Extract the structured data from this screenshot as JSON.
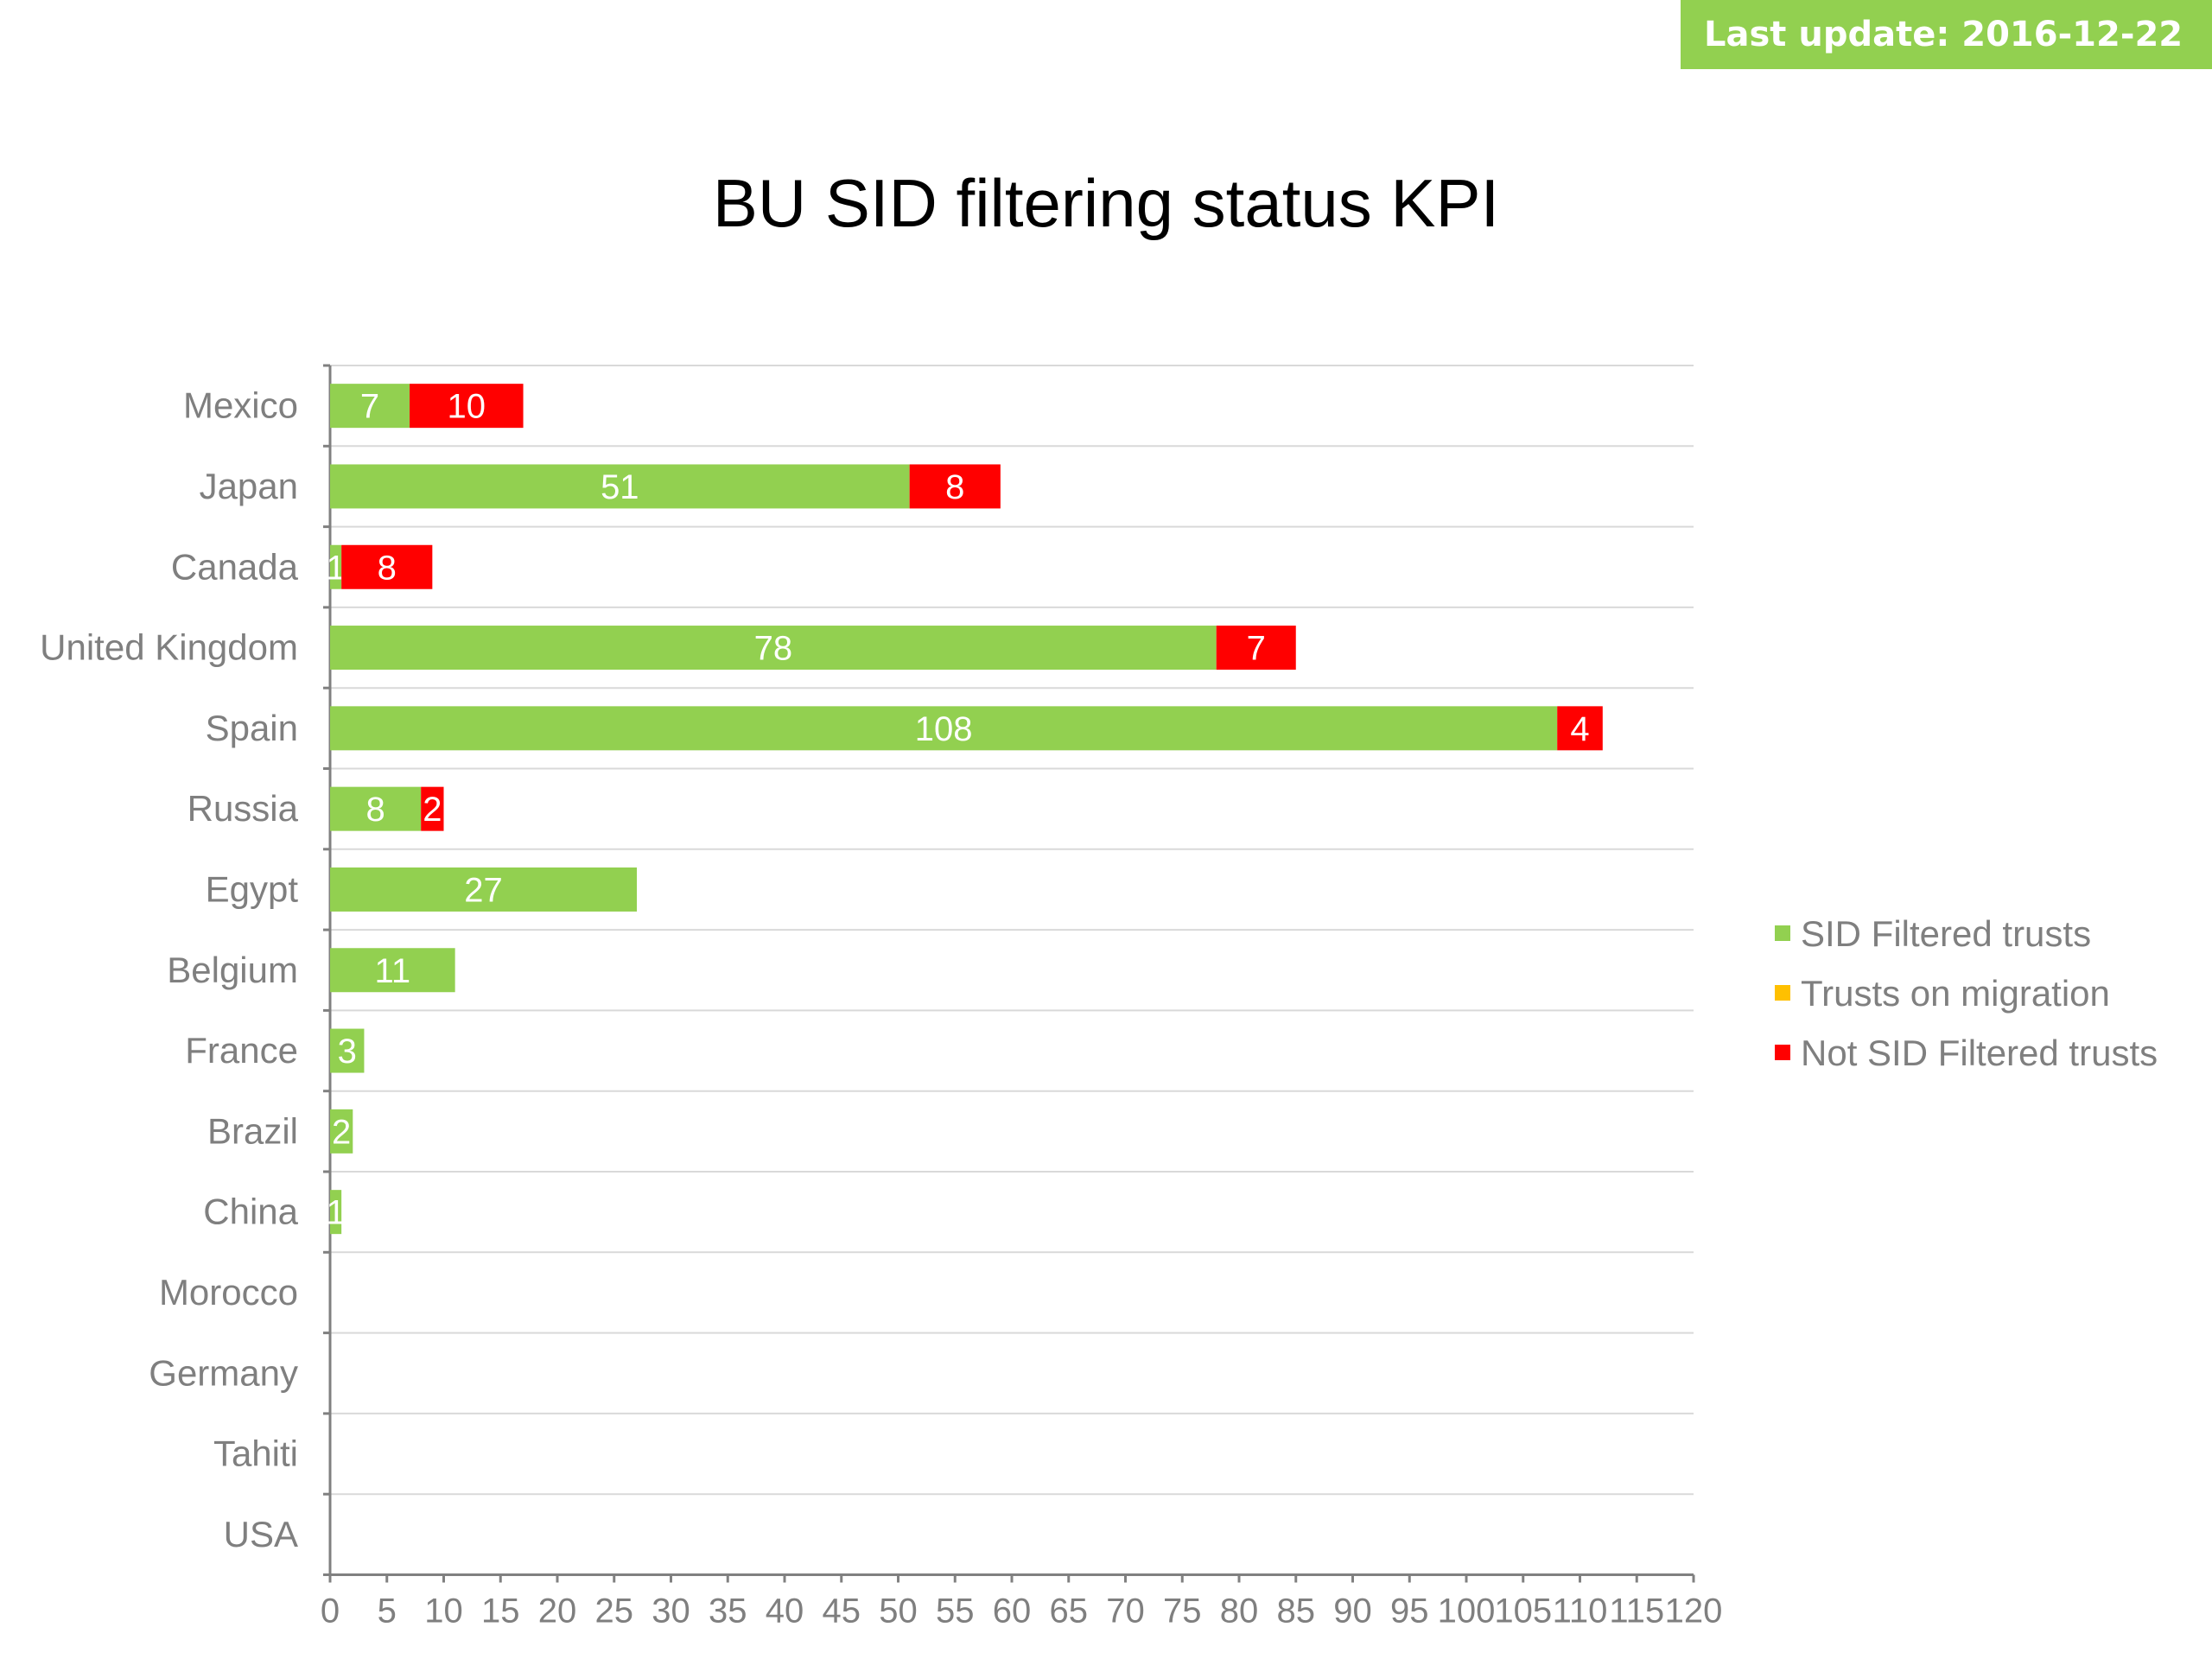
{
  "header": {
    "update_label": "Last update: 2016-12-22"
  },
  "colors": {
    "sid_filtered": "#92d050",
    "migration": "#ffc000",
    "not_filtered": "#ff0000",
    "banner": "#92d050"
  },
  "chart_data": {
    "type": "bar",
    "orientation": "horizontal",
    "stacked": true,
    "title": "BU SID filtering status KPI",
    "xlabel": "",
    "ylabel": "",
    "xlim": [
      0,
      120
    ],
    "x_tick_step": 5,
    "x_ticks": [
      "0",
      "5",
      "10",
      "15",
      "20",
      "25",
      "30",
      "35",
      "40",
      "45",
      "50",
      "55",
      "60",
      "65",
      "70",
      "75",
      "80",
      "85",
      "90",
      "95",
      "100",
      "105",
      "110",
      "115",
      "120"
    ],
    "grid": "horizontal lines between categories",
    "legend_position": "right",
    "data_labels": true,
    "categories": [
      "Mexico",
      "Japan",
      "Canada",
      "United Kingdom",
      "Spain",
      "Russia",
      "Egypt",
      "Belgium",
      "France",
      "Brazil",
      "China",
      "Morocco",
      "Germany",
      "Tahiti",
      "USA"
    ],
    "series": [
      {
        "name": "SID Filtered trusts",
        "color": "#92d050",
        "values": [
          7,
          51,
          1,
          78,
          108,
          8,
          27,
          11,
          3,
          2,
          1,
          0,
          0,
          0,
          0
        ]
      },
      {
        "name": "Trusts on migration",
        "color": "#ffc000",
        "values": [
          0,
          0,
          0,
          0,
          0,
          0,
          0,
          0,
          0,
          0,
          0,
          0,
          0,
          0,
          0
        ]
      },
      {
        "name": "Not SID Filtered trusts",
        "color": "#ff0000",
        "values": [
          10,
          8,
          8,
          7,
          4,
          2,
          0,
          0,
          0,
          0,
          0,
          0,
          0,
          0,
          0
        ]
      }
    ]
  }
}
